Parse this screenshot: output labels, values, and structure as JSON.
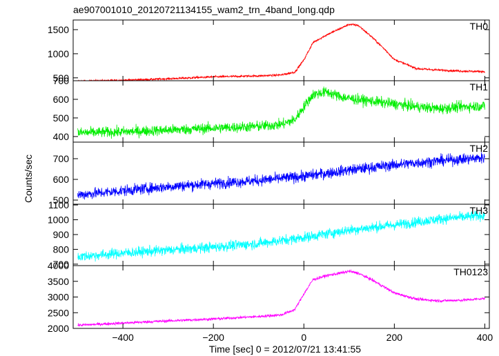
{
  "chart_data": {
    "type": "line",
    "title": "ae907001010_20120721134155_wam2_trn_4band_long.qdp",
    "xlabel": "Time [sec] 0 = 2012/07/21 13:41:55",
    "ylabel": "Counts/sec",
    "xlim": [
      -510,
      410
    ],
    "xticks": [
      -400,
      -200,
      0,
      200,
      400
    ],
    "xtick_labels": [
      "−400",
      "−200",
      "0",
      "200",
      "400"
    ],
    "grid": false,
    "series": [
      {
        "name": "TH0",
        "color": "#ff0000",
        "ylim": [
          440,
          1700
        ],
        "yticks": [
          500,
          1000,
          1500
        ],
        "ytick_labels": [
          "500",
          "1000",
          "1500"
        ],
        "noise": 22,
        "x": [
          -500,
          -400,
          -300,
          -200,
          -100,
          -50,
          -20,
          0,
          20,
          50,
          80,
          100,
          120,
          150,
          180,
          200,
          250,
          300,
          350,
          400
        ],
        "y": [
          430,
          450,
          480,
          520,
          540,
          560,
          620,
          870,
          1230,
          1390,
          1520,
          1610,
          1590,
          1350,
          1080,
          880,
          690,
          660,
          640,
          630
        ]
      },
      {
        "name": "TH1",
        "color": "#00ee00",
        "ylim": [
          370,
          700
        ],
        "yticks": [
          400,
          500,
          600,
          700
        ],
        "ytick_labels": [
          "400",
          "500",
          "600",
          "700"
        ],
        "noise": 28,
        "x": [
          -500,
          -400,
          -300,
          -200,
          -100,
          -50,
          -20,
          0,
          20,
          50,
          80,
          100,
          150,
          200,
          250,
          300,
          350,
          400
        ],
        "y": [
          420,
          425,
          435,
          445,
          455,
          465,
          490,
          560,
          625,
          640,
          615,
          605,
          590,
          575,
          560,
          550,
          560,
          565
        ]
      },
      {
        "name": "TH2",
        "color": "#0000ff",
        "ylim": [
          480,
          780
        ],
        "yticks": [
          500,
          600,
          700
        ],
        "ytick_labels": [
          "500",
          "600",
          "700"
        ],
        "noise": 26,
        "x": [
          -500,
          -400,
          -300,
          -200,
          -100,
          0,
          100,
          200,
          300,
          400
        ],
        "y": [
          525,
          545,
          565,
          580,
          595,
          615,
          645,
          670,
          690,
          705
        ]
      },
      {
        "name": "TH3",
        "color": "#00ffff",
        "ylim": [
          690,
          1105
        ],
        "yticks": [
          700,
          800,
          900,
          1000,
          1100
        ],
        "ytick_labels": [
          "700",
          "800",
          "900",
          "1000",
          "1100"
        ],
        "noise": 34,
        "x": [
          -500,
          -400,
          -300,
          -200,
          -100,
          0,
          100,
          200,
          300,
          400
        ],
        "y": [
          750,
          775,
          795,
          815,
          840,
          880,
          930,
          965,
          1005,
          1030
        ]
      },
      {
        "name": "TH0123",
        "color": "#ff00ff",
        "ylim": [
          2000,
          4000
        ],
        "yticks": [
          2000,
          2500,
          3000,
          3500,
          4000
        ],
        "ytick_labels": [
          "2000",
          "2500",
          "3000",
          "3500",
          "4000"
        ],
        "noise": 45,
        "x": [
          -500,
          -400,
          -300,
          -200,
          -100,
          -50,
          -20,
          0,
          20,
          50,
          80,
          100,
          120,
          150,
          180,
          200,
          250,
          300,
          350,
          400
        ],
        "y": [
          2100,
          2170,
          2240,
          2300,
          2380,
          2430,
          2600,
          3100,
          3550,
          3680,
          3760,
          3820,
          3760,
          3550,
          3300,
          3130,
          2930,
          2880,
          2900,
          2950
        ]
      }
    ]
  }
}
